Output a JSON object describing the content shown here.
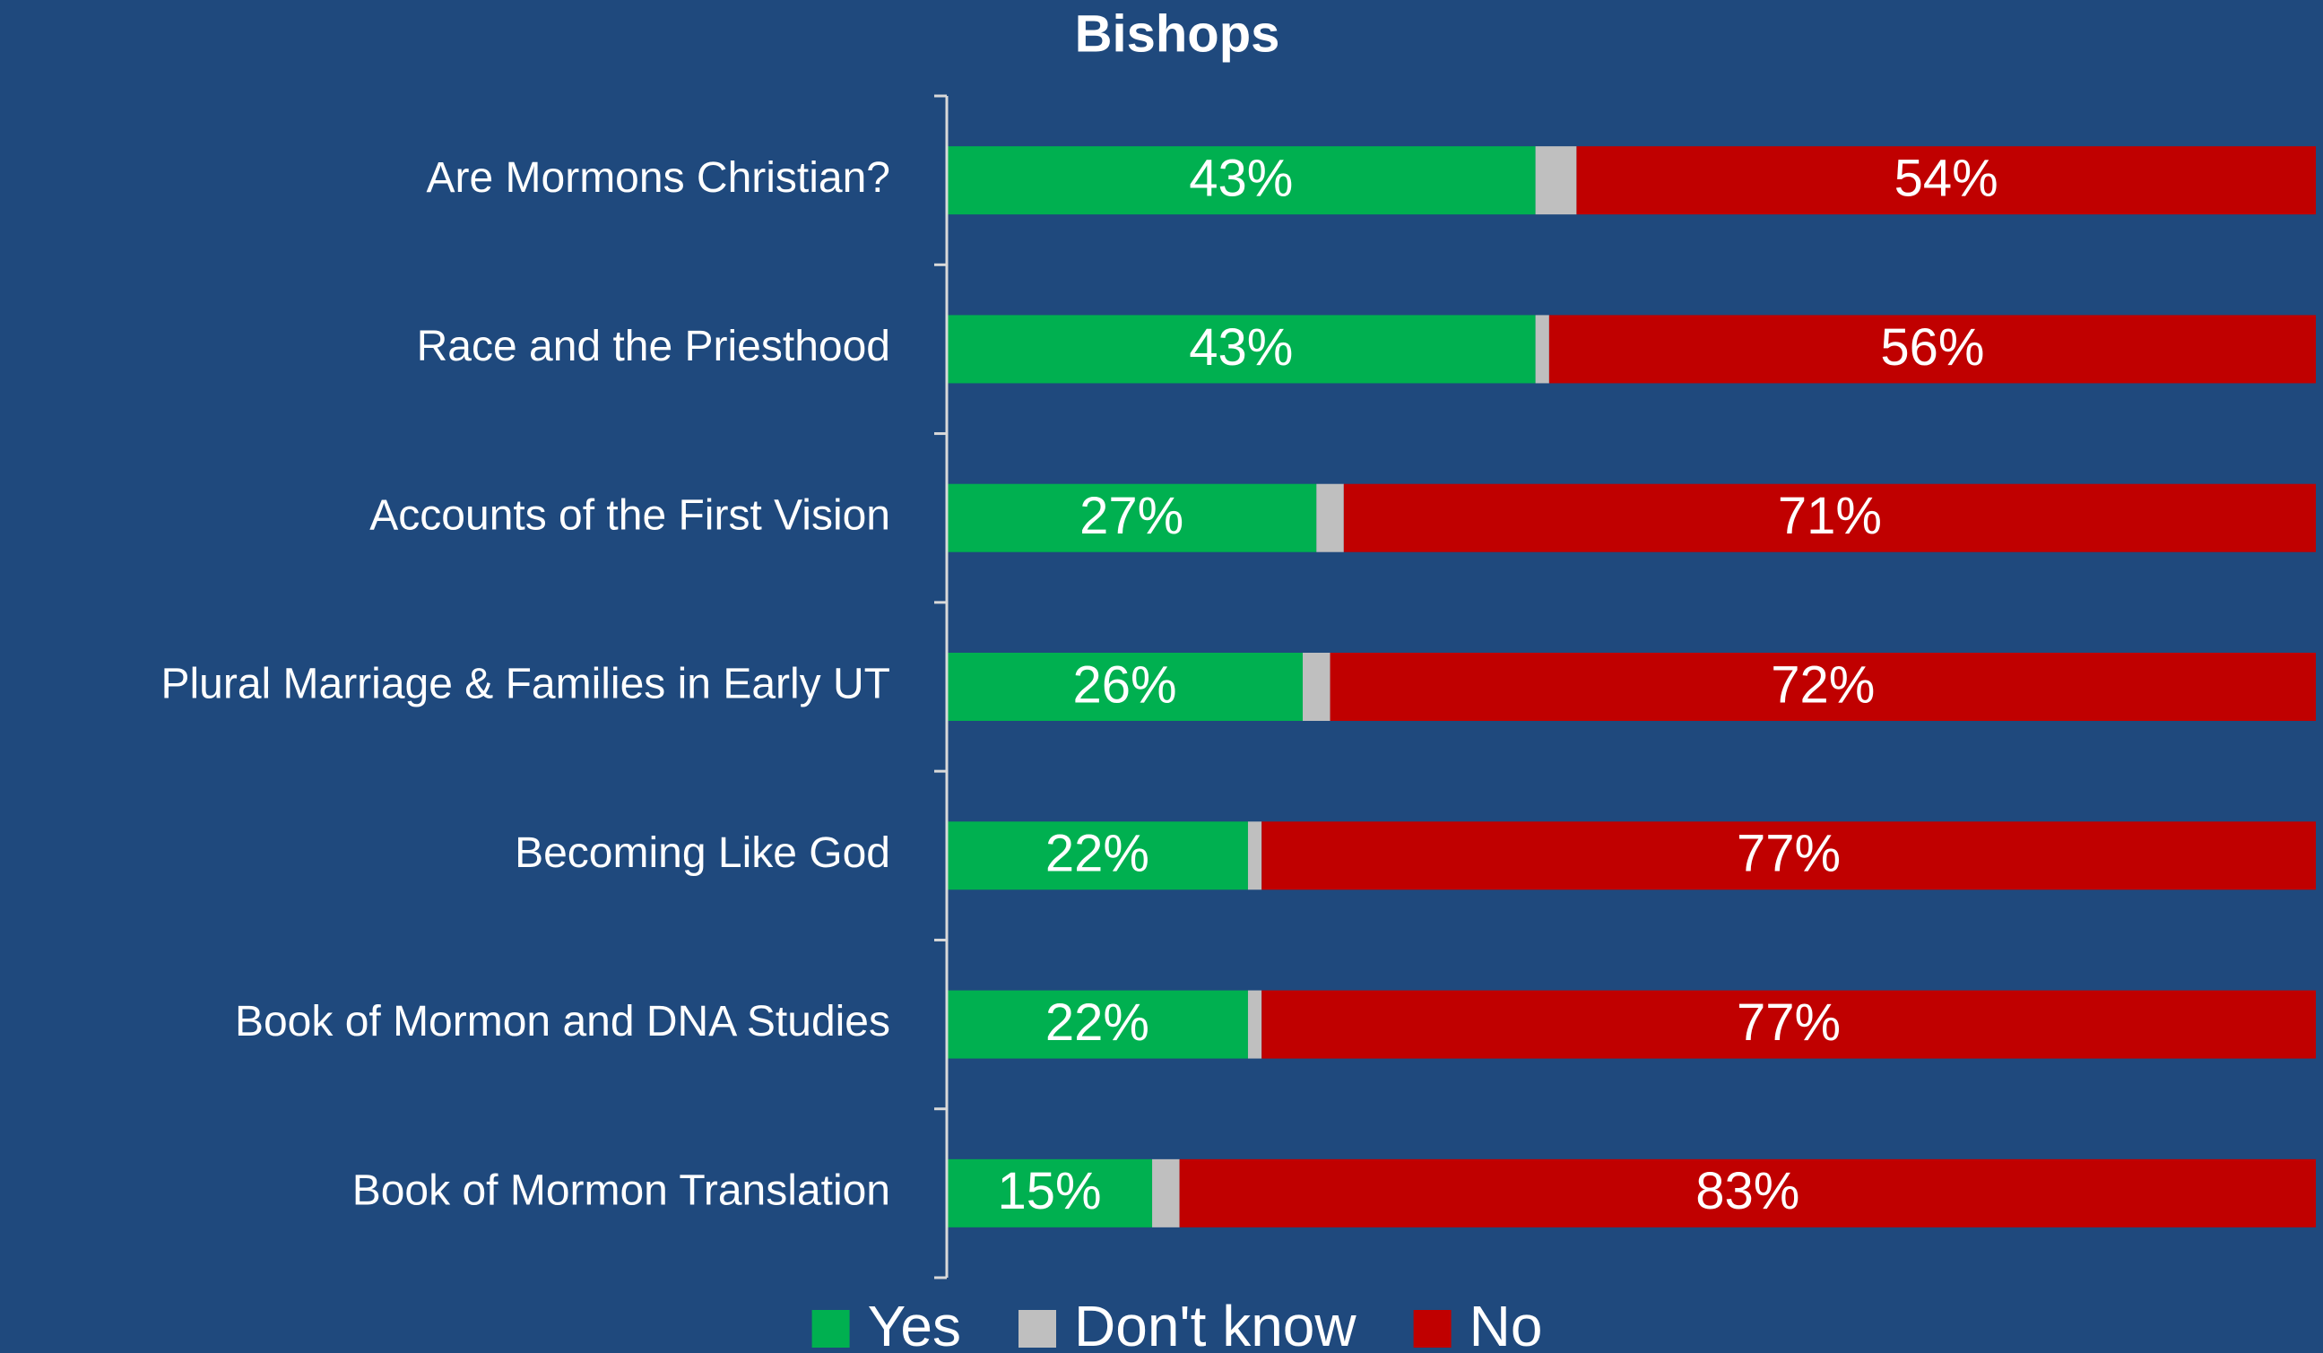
{
  "chart_data": {
    "type": "stacked-bar",
    "orientation": "horizontal",
    "title": "Bishops",
    "categories": [
      "Are Mormons Christian?",
      "Race and the Priesthood",
      "Accounts of the First Vision",
      "Plural Marriage & Families in Early UT",
      "Becoming Like God",
      "Book of Mormon and DNA Studies",
      "Book of Mormon Translation"
    ],
    "series": [
      {
        "name": "Yes",
        "color": "#00b050",
        "values": [
          43,
          43,
          27,
          26,
          22,
          22,
          15
        ],
        "value_labels": [
          "43%",
          "43%",
          "27%",
          "26%",
          "22%",
          "22%",
          "15%"
        ]
      },
      {
        "name": "Don't know",
        "color": "#bfbfbf",
        "values": [
          3,
          1,
          2,
          2,
          1,
          1,
          2
        ]
      },
      {
        "name": "No",
        "color": "#c00000",
        "values": [
          54,
          56,
          71,
          72,
          77,
          77,
          83
        ],
        "value_labels": [
          "54%",
          "56%",
          "71%",
          "72%",
          "77%",
          "77%",
          "83%"
        ]
      }
    ],
    "xlim": [
      0,
      100
    ],
    "legend": "bottom"
  }
}
